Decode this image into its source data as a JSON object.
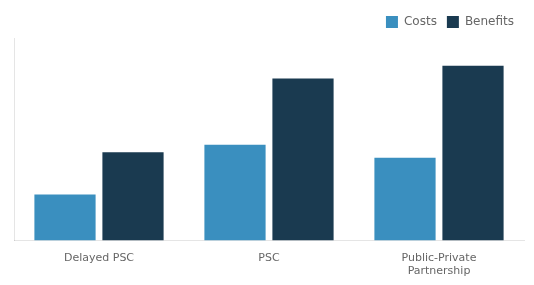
{
  "chart_data": {
    "type": "bar",
    "categories": [
      "Delayed PSC",
      "PSC",
      "Public-Private\nPartnership"
    ],
    "series": [
      {
        "name": "Costs",
        "color": "#3a8fbf",
        "values": [
          2.5,
          5.2,
          4.5
        ]
      },
      {
        "name": "Benefits",
        "color": "#1a3a50",
        "values": [
          4.8,
          8.8,
          9.5
        ]
      }
    ],
    "ylim": [
      0,
      11
    ],
    "yticks": [],
    "grid": false,
    "legend": "upper right",
    "tick_labels": "x"
  }
}
